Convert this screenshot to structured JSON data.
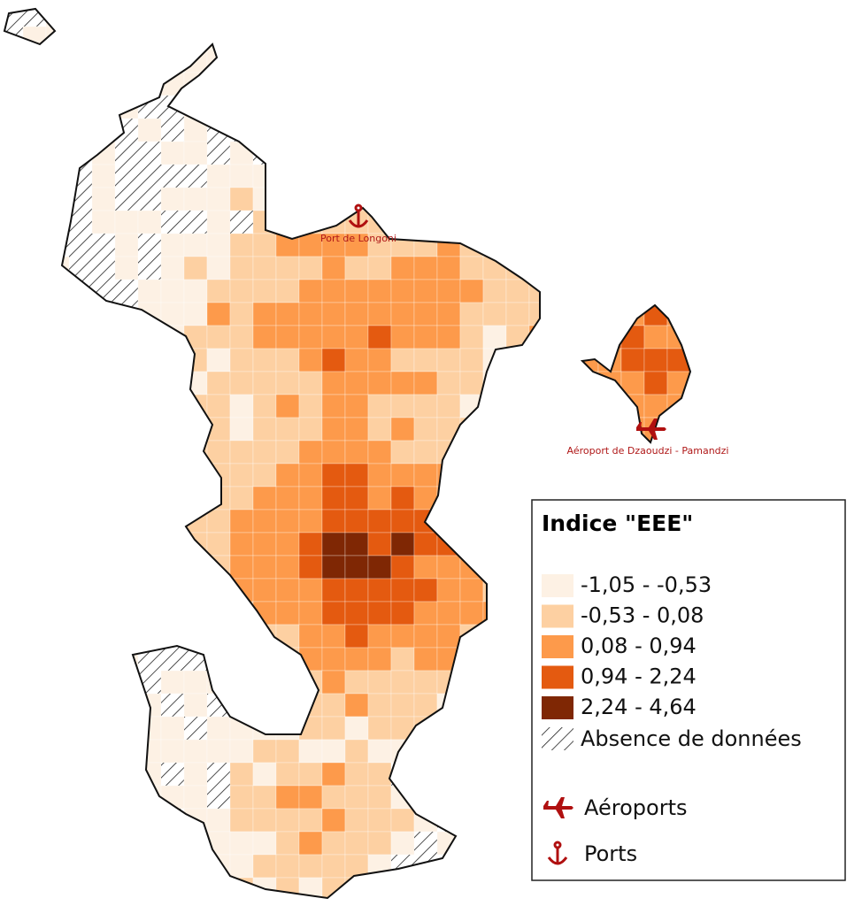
{
  "legend": {
    "title": "Indice \"EEE\"",
    "classes": [
      {
        "label": "-1,05 - -0,53",
        "color": "#fdf1e4"
      },
      {
        "label": "-0,53 - 0,08",
        "color": "#fdd0a2"
      },
      {
        "label": "0,08 - 0,94",
        "color": "#fd9a4b"
      },
      {
        "label": "0,94 - 2,24",
        "color": "#e45a10"
      },
      {
        "label": "2,24 - 4,64",
        "color": "#7f2704"
      }
    ],
    "no_data": "Absence de données",
    "airports": "Aéroports",
    "ports": "Ports"
  },
  "places": {
    "port": "Port de Longoni",
    "airport": "Aéroport de Dzaoudzi - Pamandzi"
  }
}
